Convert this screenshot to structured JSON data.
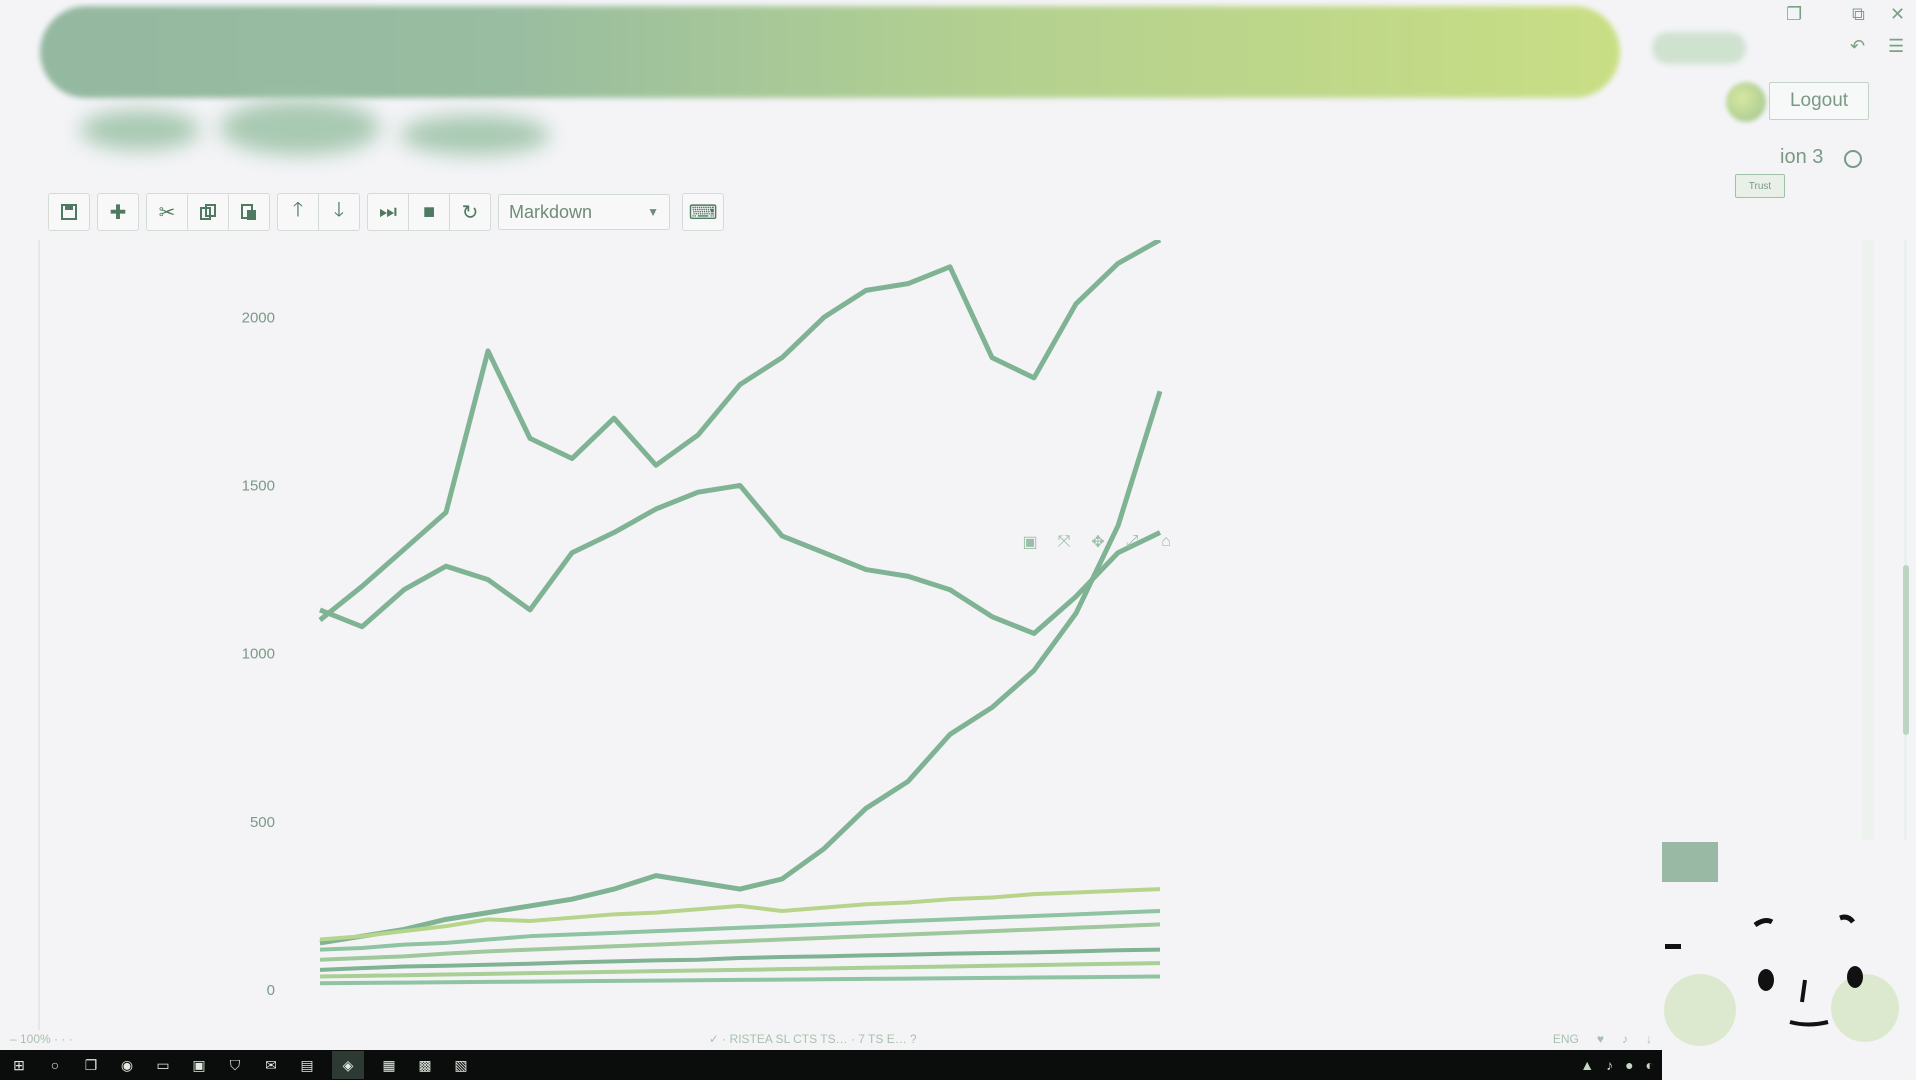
{
  "header": {
    "logout_label": "Logout",
    "kernel_name": "ion 3",
    "kernel_status_badge": "Trust",
    "window_controls": [
      "❐",
      "⧉",
      "✕"
    ]
  },
  "toolbar": {
    "buttons": [
      {
        "name": "save",
        "icon": "save-icon"
      },
      {
        "name": "insert-cell-below",
        "icon": "plus-icon"
      },
      {
        "name": "cut",
        "icon": "scissors-icon"
      },
      {
        "name": "copy",
        "icon": "copy-icon"
      },
      {
        "name": "paste",
        "icon": "paste-icon"
      },
      {
        "name": "move-up",
        "icon": "arrow-up-icon"
      },
      {
        "name": "move-down",
        "icon": "arrow-down-icon"
      },
      {
        "name": "run",
        "icon": "step-forward-icon"
      },
      {
        "name": "interrupt",
        "icon": "stop-icon"
      },
      {
        "name": "restart",
        "icon": "refresh-icon"
      },
      {
        "name": "command-palette",
        "icon": "keyboard-icon"
      }
    ],
    "cell_type": "Markdown"
  },
  "chart_data": {
    "type": "line",
    "title": "",
    "xlabel": "",
    "ylabel": "",
    "yticks": [
      "2000",
      "1500",
      "1000",
      "500",
      "0"
    ],
    "ylim": [
      0,
      2200
    ],
    "grid": false,
    "x": [
      0,
      1,
      2,
      3,
      4,
      5,
      6,
      7,
      8,
      9,
      10,
      11,
      12,
      13,
      14,
      15,
      16,
      17,
      18,
      19,
      20
    ],
    "series": [
      {
        "color": "#7fb394",
        "values": [
          1100,
          1200,
          1310,
          1420,
          1900,
          1640,
          1580,
          1700,
          1560,
          1650,
          1800,
          1880,
          2000,
          2080,
          2100,
          2150,
          1880,
          1820,
          2040,
          2160,
          2230
        ]
      },
      {
        "color": "#7fb394",
        "values": [
          1130,
          1080,
          1190,
          1260,
          1220,
          1130,
          1300,
          1360,
          1430,
          1480,
          1500,
          1350,
          1300,
          1250,
          1230,
          1190,
          1110,
          1060,
          1170,
          1300,
          1360
        ]
      },
      {
        "color": "#7fb394",
        "values": [
          140,
          160,
          180,
          210,
          230,
          250,
          270,
          300,
          340,
          320,
          300,
          330,
          420,
          540,
          620,
          760,
          840,
          950,
          1120,
          1380,
          1780
        ]
      },
      {
        "color": "#b7d58a",
        "values": [
          150,
          160,
          175,
          190,
          210,
          205,
          215,
          225,
          230,
          240,
          250,
          235,
          245,
          255,
          260,
          270,
          275,
          285,
          290,
          295,
          300
        ]
      },
      {
        "color": "#8fc3a2",
        "values": [
          120,
          125,
          135,
          140,
          150,
          160,
          165,
          170,
          175,
          180,
          185,
          190,
          195,
          200,
          205,
          210,
          215,
          220,
          225,
          230,
          235
        ]
      },
      {
        "color": "#9fc89d",
        "values": [
          90,
          95,
          100,
          108,
          115,
          120,
          125,
          130,
          135,
          140,
          145,
          150,
          155,
          160,
          165,
          170,
          175,
          180,
          185,
          190,
          195
        ]
      },
      {
        "color": "#7fb394",
        "values": [
          60,
          65,
          70,
          72,
          75,
          78,
          82,
          85,
          88,
          90,
          95,
          98,
          100,
          103,
          105,
          108,
          110,
          112,
          115,
          118,
          120
        ]
      },
      {
        "color": "#a9cf96",
        "values": [
          40,
          42,
          44,
          46,
          48,
          50,
          52,
          54,
          56,
          58,
          60,
          62,
          64,
          66,
          68,
          70,
          72,
          74,
          76,
          78,
          80
        ]
      },
      {
        "color": "#8fc3a2",
        "values": [
          20,
          21,
          22,
          23,
          24,
          25,
          26,
          27,
          28,
          29,
          30,
          31,
          32,
          33,
          34,
          35,
          36,
          37,
          38,
          39,
          40
        ]
      }
    ]
  },
  "modebar_icons": [
    "camera-icon",
    "zoom-icon",
    "pan-icon",
    "autoscale-icon",
    "reset-icon"
  ],
  "status_bar": {
    "left": "– 100% · · ·",
    "middle": "✓ · RISTEA SL CTS TS… · 7 TS E… ?",
    "right_items": [
      "ENG",
      "♥",
      "♪",
      "↓"
    ]
  },
  "taskbar": {
    "icons": [
      "windows-icon",
      "search-icon",
      "task-view-icon",
      "chrome-icon",
      "folder-icon",
      "store-icon",
      "shield-icon",
      "mail-icon",
      "terminal-icon",
      "notebook-icon",
      "editor-icon",
      "settings-icon",
      "media-icon"
    ],
    "tray": [
      "▲",
      "♪",
      "●",
      "◐"
    ]
  }
}
